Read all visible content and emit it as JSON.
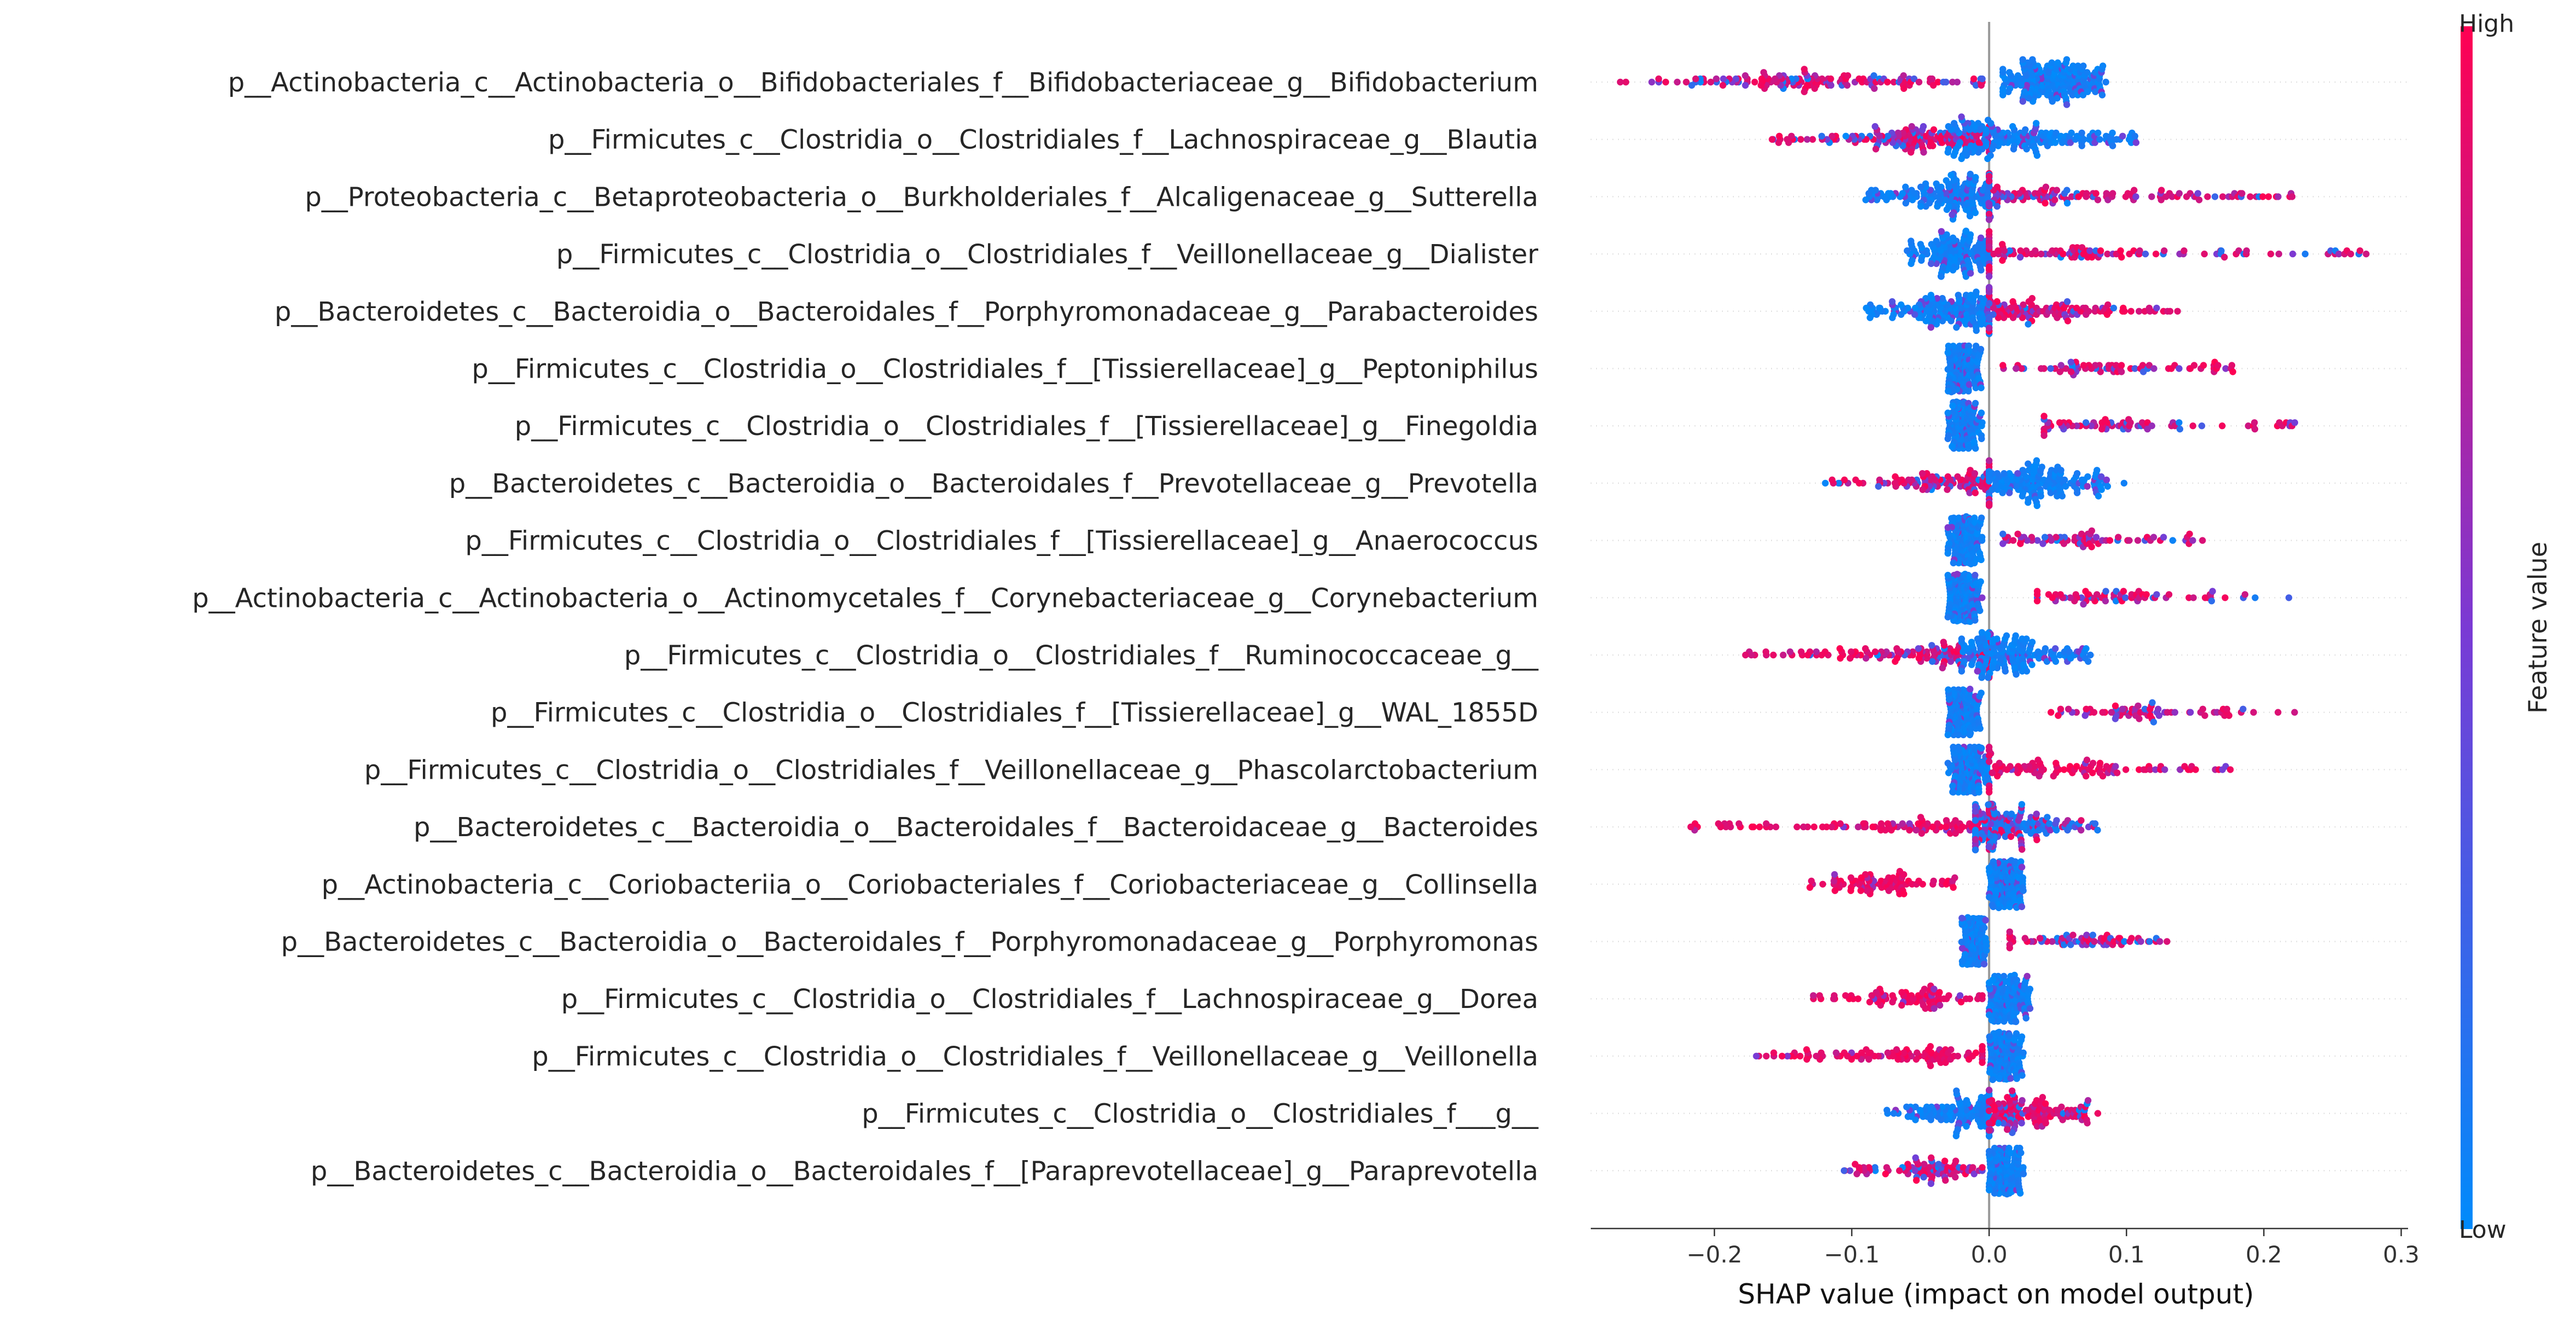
{
  "chart_data": {
    "type": "scatter",
    "subtype": "shap-beeswarm",
    "xlabel": "SHAP value (impact on model output)",
    "xlim": [
      -0.29,
      0.305
    ],
    "xticks": [
      -0.2,
      -0.1,
      0.0,
      0.1,
      0.2,
      0.3
    ],
    "xtick_labels": [
      "−0.2",
      "−0.1",
      "0.0",
      "0.1",
      "0.2",
      "0.3"
    ],
    "zero_line": true,
    "colorbar": {
      "title": "Feature value",
      "high_label": "High",
      "low_label": "Low",
      "low_color": "#008bfb",
      "mid_color": "#7a3ad4",
      "high_color": "#ff0052"
    },
    "features": [
      {
        "name": "p__Actinobacteria_c__Actinobacteria_o__Bifidobacteriales_f__Bifidobacteriaceae_g__Bifidobacterium",
        "clusters": [
          {
            "lo": -0.27,
            "hi": -0.005,
            "weight": 1.0,
            "tone": "high-mix",
            "peak": -0.12
          },
          {
            "lo": 0.01,
            "hi": 0.085,
            "weight": 1.4,
            "tone": "low",
            "peak": 0.04
          }
        ]
      },
      {
        "name": "p__Firmicutes_c__Clostridia_o__Clostridiales_f__Lachnospiraceae_g__Blautia",
        "clusters": [
          {
            "lo": -0.16,
            "hi": 0.0,
            "weight": 1.1,
            "tone": "high-mix",
            "peak": -0.05
          },
          {
            "lo": -0.03,
            "hi": 0.11,
            "weight": 1.2,
            "tone": "low",
            "peak": 0.02
          }
        ]
      },
      {
        "name": "p__Proteobacteria_c__Betaproteobacteria_o__Burkholderiales_f__Alcaligenaceae_g__Sutterella",
        "clusters": [
          {
            "lo": -0.09,
            "hi": 0.0,
            "weight": 1.2,
            "tone": "low",
            "peak": -0.02
          },
          {
            "lo": 0.0,
            "hi": 0.23,
            "weight": 0.9,
            "tone": "high-mix",
            "peak": 0.03
          }
        ]
      },
      {
        "name": "p__Firmicutes_c__Clostridia_o__Clostridiales_f__Veillonellaceae_g__Dialister",
        "clusters": [
          {
            "lo": -0.06,
            "hi": 0.0,
            "weight": 1.0,
            "tone": "low",
            "peak": -0.02
          },
          {
            "lo": 0.0,
            "hi": 0.28,
            "weight": 0.8,
            "tone": "high-mix",
            "peak": 0.04
          }
        ]
      },
      {
        "name": "p__Bacteroidetes_c__Bacteroidia_o__Bacteroidales_f__Porphyromonadaceae_g__Parabacteroides",
        "clusters": [
          {
            "lo": -0.09,
            "hi": 0.0,
            "weight": 1.2,
            "tone": "low",
            "peak": -0.02
          },
          {
            "lo": 0.0,
            "hi": 0.15,
            "weight": 0.8,
            "tone": "high-mix",
            "peak": 0.03
          }
        ]
      },
      {
        "name": "p__Firmicutes_c__Clostridia_o__Clostridiales_f__[Tissierellaceae]_g__Peptoniphilus",
        "clusters": [
          {
            "lo": -0.03,
            "hi": -0.005,
            "weight": 1.2,
            "tone": "low",
            "peak": -0.02
          },
          {
            "lo": 0.01,
            "hi": 0.18,
            "weight": 0.5,
            "tone": "high-mix",
            "peak": 0.08
          }
        ]
      },
      {
        "name": "p__Firmicutes_c__Clostridia_o__Clostridiales_f__[Tissierellaceae]_g__Finegoldia",
        "clusters": [
          {
            "lo": -0.03,
            "hi": -0.005,
            "weight": 1.2,
            "tone": "low",
            "peak": -0.02
          },
          {
            "lo": 0.04,
            "hi": 0.23,
            "weight": 0.5,
            "tone": "high-mix",
            "peak": 0.09
          }
        ]
      },
      {
        "name": "p__Bacteroidetes_c__Bacteroidia_o__Bacteroidales_f__Prevotellaceae_g__Prevotella",
        "clusters": [
          {
            "lo": -0.12,
            "hi": 0.0,
            "weight": 0.8,
            "tone": "high-mix",
            "peak": -0.02
          },
          {
            "lo": 0.0,
            "hi": 0.105,
            "weight": 1.1,
            "tone": "low",
            "peak": 0.03
          }
        ]
      },
      {
        "name": "p__Firmicutes_c__Clostridia_o__Clostridiales_f__[Tissierellaceae]_g__Anaerococcus",
        "clusters": [
          {
            "lo": -0.03,
            "hi": -0.005,
            "weight": 1.2,
            "tone": "low",
            "peak": -0.02
          },
          {
            "lo": 0.01,
            "hi": 0.165,
            "weight": 0.5,
            "tone": "high-mix",
            "peak": 0.06
          }
        ]
      },
      {
        "name": "p__Actinobacteria_c__Actinobacteria_o__Actinomycetales_f__Corynebacteriaceae_g__Corynebacterium",
        "clusters": [
          {
            "lo": -0.03,
            "hi": -0.005,
            "weight": 1.2,
            "tone": "low",
            "peak": -0.02
          },
          {
            "lo": 0.035,
            "hi": 0.22,
            "weight": 0.5,
            "tone": "high-mix",
            "peak": 0.08
          }
        ]
      },
      {
        "name": "p__Firmicutes_c__Clostridia_o__Clostridiales_f__Ruminococcaceae_g__",
        "clusters": [
          {
            "lo": -0.18,
            "hi": 0.0,
            "weight": 0.9,
            "tone": "high-mix",
            "peak": -0.03
          },
          {
            "lo": -0.02,
            "hi": 0.075,
            "weight": 1.2,
            "tone": "low",
            "peak": 0.01
          }
        ]
      },
      {
        "name": "p__Firmicutes_c__Clostridia_o__Clostridiales_f__[Tissierellaceae]_g__WAL_1855D",
        "clusters": [
          {
            "lo": -0.03,
            "hi": -0.005,
            "weight": 1.2,
            "tone": "low",
            "peak": -0.02
          },
          {
            "lo": 0.045,
            "hi": 0.235,
            "weight": 0.5,
            "tone": "high-mix",
            "peak": 0.1
          }
        ]
      },
      {
        "name": "p__Firmicutes_c__Clostridia_o__Clostridiales_f__Veillonellaceae_g__Phascolarctobacterium",
        "clusters": [
          {
            "lo": -0.03,
            "hi": 0.0,
            "weight": 1.2,
            "tone": "low",
            "peak": -0.015
          },
          {
            "lo": 0.0,
            "hi": 0.185,
            "weight": 0.7,
            "tone": "high",
            "peak": 0.05
          }
        ]
      },
      {
        "name": "p__Bacteroidetes_c__Bacteroidia_o__Bacteroidales_f__Bacteroidaceae_g__Bacteroides",
        "clusters": [
          {
            "lo": -0.22,
            "hi": 0.0,
            "weight": 0.8,
            "tone": "high",
            "peak": -0.03
          },
          {
            "lo": -0.01,
            "hi": 0.08,
            "weight": 1.2,
            "tone": "low-mix",
            "peak": 0.01
          }
        ]
      },
      {
        "name": "p__Actinobacteria_c__Coriobacteriia_o__Coriobacteriales_f__Coriobacteriaceae_g__Collinsella",
        "clusters": [
          {
            "lo": -0.135,
            "hi": -0.025,
            "weight": 0.6,
            "tone": "high",
            "peak": -0.08
          },
          {
            "lo": 0.0,
            "hi": 0.025,
            "weight": 1.2,
            "tone": "low",
            "peak": 0.01
          }
        ]
      },
      {
        "name": "p__Bacteroidetes_c__Bacteroidia_o__Bacteroidales_f__Porphyromonadaceae_g__Porphyromonas",
        "clusters": [
          {
            "lo": -0.02,
            "hi": -0.002,
            "weight": 1.2,
            "tone": "low",
            "peak": -0.01
          },
          {
            "lo": 0.015,
            "hi": 0.137,
            "weight": 0.5,
            "tone": "high-mix",
            "peak": 0.05
          }
        ]
      },
      {
        "name": "p__Firmicutes_c__Clostridia_o__Clostridiales_f__Lachnospiraceae_g__Dorea",
        "clusters": [
          {
            "lo": -0.145,
            "hi": -0.005,
            "weight": 0.6,
            "tone": "high",
            "peak": -0.05
          },
          {
            "lo": 0.0,
            "hi": 0.03,
            "weight": 1.2,
            "tone": "low",
            "peak": 0.01
          }
        ]
      },
      {
        "name": "p__Firmicutes_c__Clostridia_o__Clostridiales_f__Veillonellaceae_g__Veillonella",
        "clusters": [
          {
            "lo": -0.17,
            "hi": -0.005,
            "weight": 0.7,
            "tone": "high",
            "peak": -0.05
          },
          {
            "lo": 0.0,
            "hi": 0.025,
            "weight": 1.2,
            "tone": "low",
            "peak": 0.01
          }
        ]
      },
      {
        "name": "p__Firmicutes_c__Clostridia_o__Clostridiales_f___g__",
        "clusters": [
          {
            "lo": -0.075,
            "hi": 0.0,
            "weight": 0.9,
            "tone": "low",
            "peak": -0.01
          },
          {
            "lo": 0.0,
            "hi": 0.08,
            "weight": 0.9,
            "tone": "high-mix",
            "peak": 0.02
          }
        ]
      },
      {
        "name": "p__Bacteroidetes_c__Bacteroidia_o__Bacteroidales_f__[Paraprevotellaceae]_g__Paraprevotella",
        "clusters": [
          {
            "lo": -0.107,
            "hi": -0.005,
            "weight": 0.6,
            "tone": "high-mix",
            "peak": -0.04
          },
          {
            "lo": 0.0,
            "hi": 0.025,
            "weight": 1.2,
            "tone": "low",
            "peak": 0.01
          }
        ]
      }
    ]
  }
}
